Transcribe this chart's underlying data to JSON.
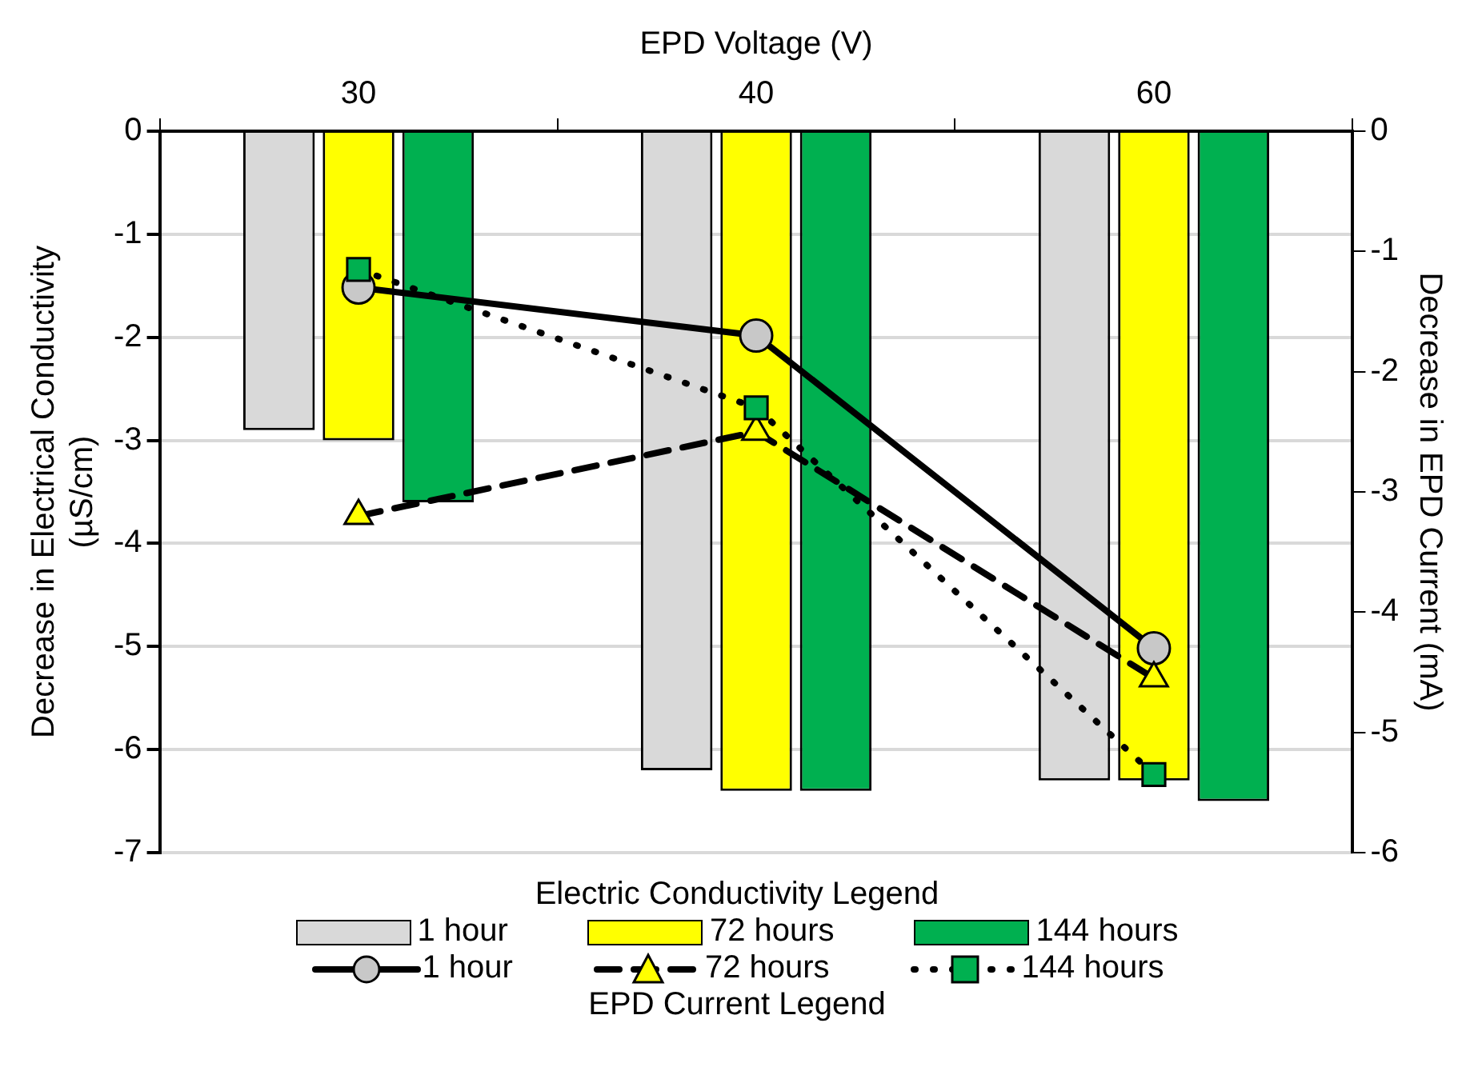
{
  "chart_data": {
    "type": "bar",
    "xlabel": "EPD Voltage (V)",
    "ylabel": "Decrease in Electrical Conductivity (µS/cm)",
    "y2label": "Decrease in EPD Current (mA)",
    "categories": [
      "30",
      "40",
      "60"
    ],
    "series": [
      {
        "name": "1 hour",
        "color": "#d9d9d9",
        "values": [
          -2.9,
          -6.2,
          -6.3
        ]
      },
      {
        "name": "72 hours",
        "color": "#ffff00",
        "values": [
          -3.0,
          -6.4,
          -6.3
        ]
      },
      {
        "name": "144 hours",
        "color": "#00b050",
        "values": [
          -3.6,
          -6.4,
          -6.5
        ]
      },
      {
        "name": "1 hour",
        "type": "line",
        "axis": "y2",
        "color": "#c8c8c8",
        "marker": "circle",
        "line_style": "solid",
        "values": [
          -1.3,
          -1.7,
          -4.3
        ]
      },
      {
        "name": "72 hours",
        "type": "line",
        "axis": "y2",
        "color": "#ffff00",
        "marker": "triangle",
        "line_style": "dashed",
        "values": [
          -3.2,
          -2.5,
          -4.55
        ]
      },
      {
        "name": "144 hours",
        "type": "line",
        "axis": "y2",
        "color": "#00b050",
        "marker": "square",
        "line_style": "dotted",
        "values": [
          -1.15,
          -2.3,
          -5.35
        ]
      }
    ],
    "ylim": [
      -7,
      0
    ],
    "yticks": [
      -7,
      -6,
      -5,
      -4,
      -3,
      -2,
      -1,
      0
    ],
    "y2lim": [
      -6,
      0
    ],
    "y2ticks": [
      -6,
      -5,
      -4,
      -3,
      -2,
      -1,
      0
    ],
    "grid": "y",
    "legend": "bottom",
    "legend_title": "Electric Conductivity Legend",
    "annotations": [
      "EPD Current Legend"
    ]
  }
}
